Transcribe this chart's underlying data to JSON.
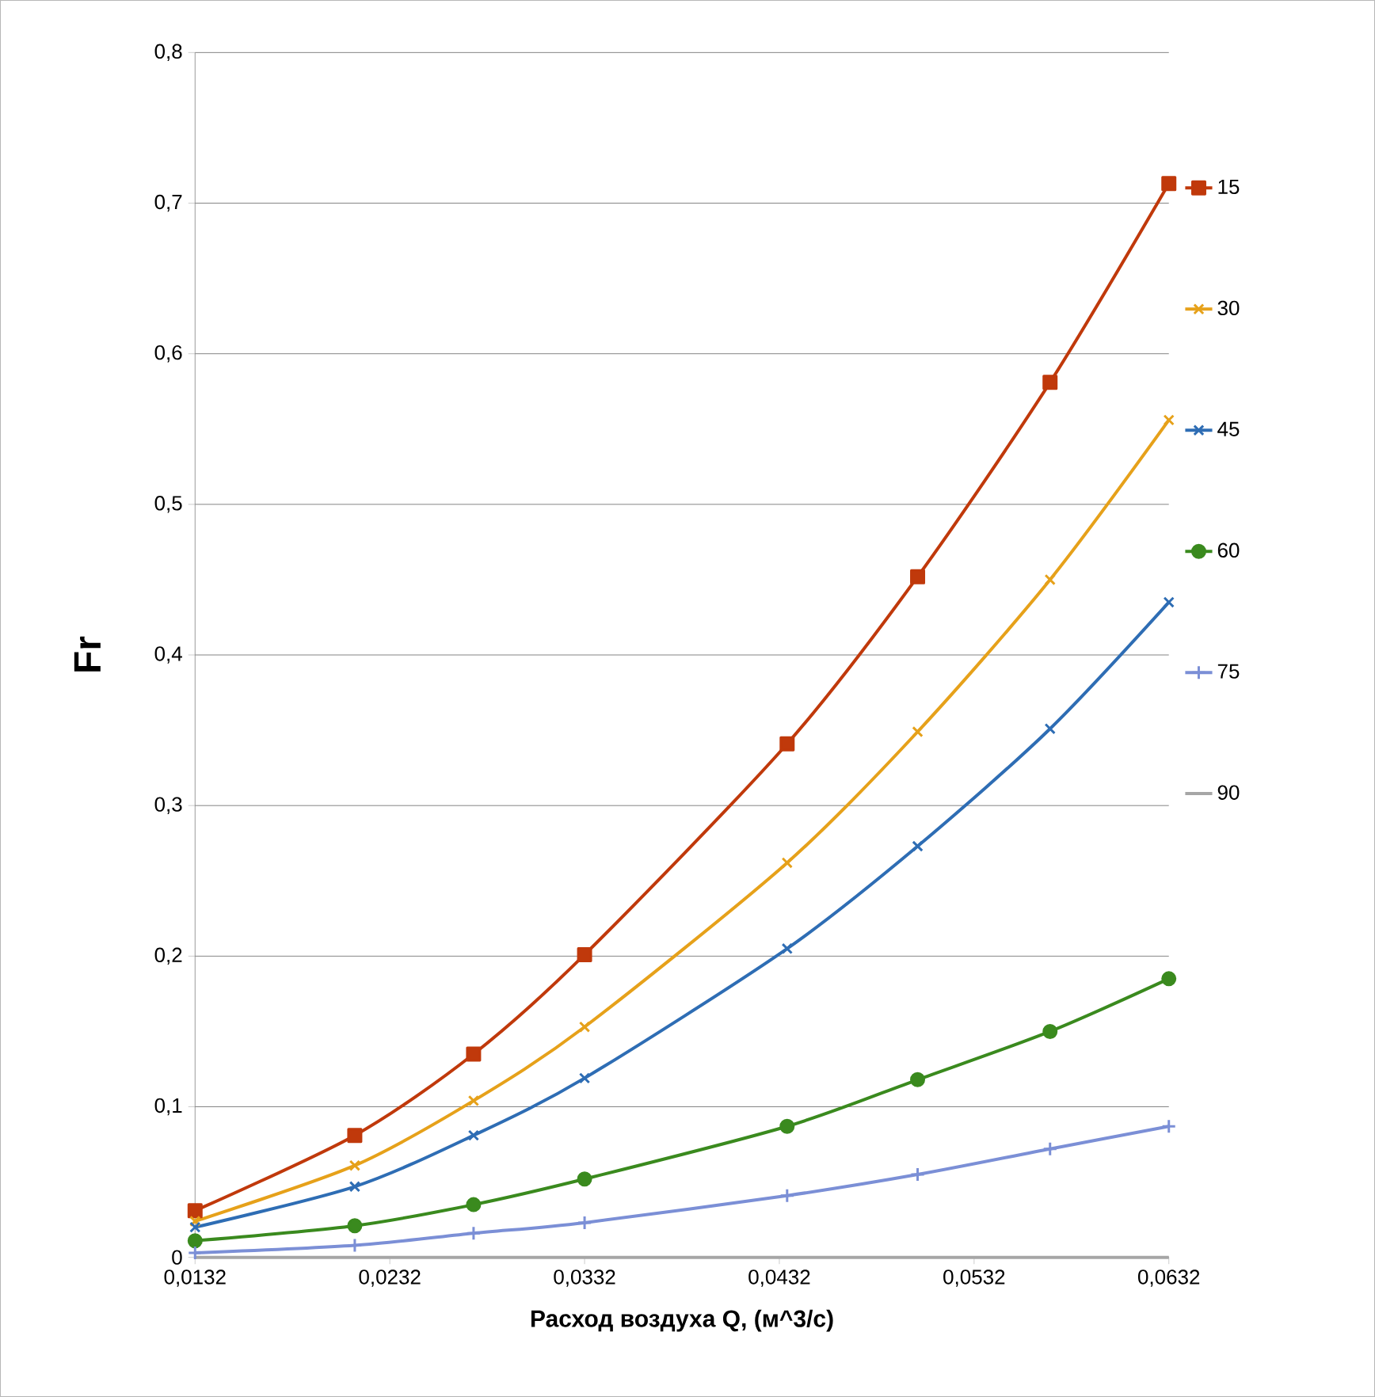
{
  "chart_data": {
    "type": "line",
    "xlabel": "Расход воздуха Q, (м^3/с)",
    "ylabel": "Fr",
    "xlim": [
      0.0132,
      0.0632
    ],
    "xticks": [
      {
        "value": 0.0132,
        "label": "0,0132"
      },
      {
        "value": 0.0232,
        "label": "0,0232"
      },
      {
        "value": 0.0332,
        "label": "0,0332"
      },
      {
        "value": 0.0432,
        "label": "0,0432"
      },
      {
        "value": 0.0532,
        "label": "0,0532"
      },
      {
        "value": 0.0632,
        "label": "0,0632"
      }
    ],
    "ylim": [
      0,
      0.8
    ],
    "yticks": [
      0,
      {
        "value": 0.1,
        "label": "0,1"
      },
      {
        "value": 0.2,
        "label": "0,2"
      },
      {
        "value": 0.3,
        "label": "0,3"
      },
      {
        "value": 0.4,
        "label": "0,4"
      },
      {
        "value": 0.5,
        "label": "0,5"
      },
      {
        "value": 0.6,
        "label": "0,6"
      },
      {
        "value": 0.7,
        "label": "0,7"
      },
      {
        "value": 0.8,
        "label": "0,8"
      }
    ],
    "x": [
      0.0132,
      0.0214,
      0.0275,
      0.0332,
      0.0436,
      0.0503,
      0.0571,
      0.0632
    ],
    "grid": "y",
    "legend": "right",
    "series": [
      {
        "name": "15",
        "color": "#c0390b",
        "marker": "square",
        "values": [
          0.031,
          0.081,
          0.135,
          0.201,
          0.341,
          0.452,
          0.581,
          0.713
        ]
      },
      {
        "name": "30",
        "color": "#e6a11a",
        "marker": "cross",
        "values": [
          0.024,
          0.061,
          0.104,
          0.153,
          0.262,
          0.349,
          0.45,
          0.556
        ]
      },
      {
        "name": "45",
        "color": "#2e6db4",
        "marker": "cross",
        "values": [
          0.02,
          0.047,
          0.081,
          0.119,
          0.205,
          0.273,
          0.351,
          0.435
        ]
      },
      {
        "name": "60",
        "color": "#3a8a1e",
        "marker": "circle",
        "values": [
          0.011,
          0.021,
          0.035,
          0.052,
          0.087,
          0.118,
          0.15,
          0.185
        ]
      },
      {
        "name": "75",
        "color": "#7b8fd6",
        "marker": "plus",
        "values": [
          0.003,
          0.008,
          0.016,
          0.023,
          0.041,
          0.055,
          0.072,
          0.087
        ]
      },
      {
        "name": "90",
        "color": "#a6a6a6",
        "marker": "none",
        "values": [
          0,
          0,
          0,
          0,
          0,
          0,
          0,
          0
        ]
      }
    ]
  }
}
